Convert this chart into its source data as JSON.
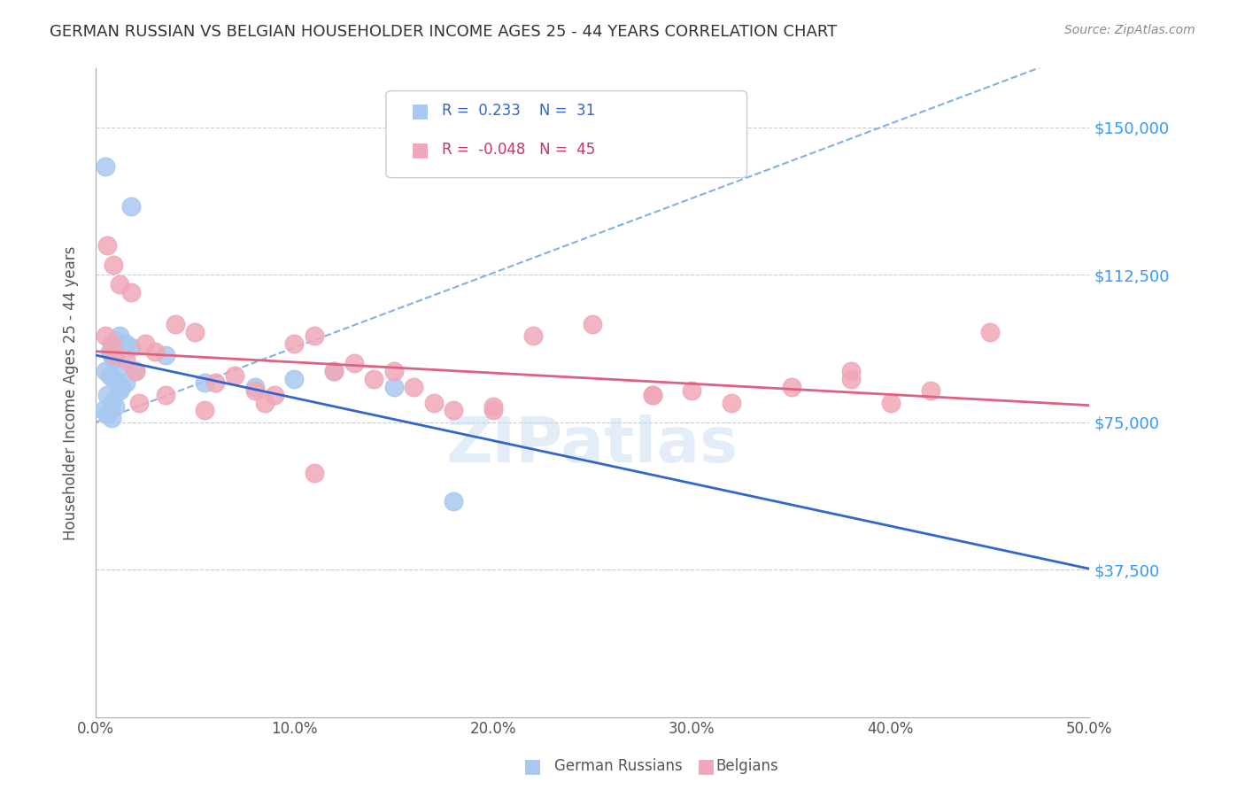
{
  "title": "GERMAN RUSSIAN VS BELGIAN HOUSEHOLDER INCOME AGES 25 - 44 YEARS CORRELATION CHART",
  "source": "Source: ZipAtlas.com",
  "ylabel": "Householder Income Ages 25 - 44 years",
  "xlabel_ticks": [
    "0.0%",
    "10.0%",
    "20.0%",
    "30.0%",
    "40.0%",
    "50.0%"
  ],
  "xlabel_vals": [
    0,
    10,
    20,
    30,
    40,
    50
  ],
  "ytick_labels": [
    "$37,500",
    "$75,000",
    "$112,500",
    "$150,000"
  ],
  "ytick_vals": [
    37500,
    75000,
    112500,
    150000
  ],
  "ylim": [
    0,
    165000
  ],
  "xlim": [
    0,
    50
  ],
  "legend_blue_r": "0.233",
  "legend_blue_n": "31",
  "legend_pink_r": "-0.048",
  "legend_pink_n": "45",
  "blue_color": "#a8c8f0",
  "blue_line_color": "#3366cc",
  "blue_dashed_color": "#80b0e8",
  "pink_color": "#f0a8b8",
  "pink_line_color": "#e06080",
  "watermark": "ZIPatlas",
  "german_russians": {
    "x": [
      0.8,
      1.0,
      1.2,
      1.5,
      1.8,
      0.5,
      0.7,
      0.9,
      1.1,
      1.3,
      0.6,
      0.8,
      1.0,
      1.2,
      0.4,
      0.6,
      0.8,
      1.5,
      2.0,
      0.9,
      1.1,
      0.7,
      3.5,
      5.5,
      8.0,
      10.0,
      12.0,
      15.0,
      18.0,
      0.5,
      1.8
    ],
    "y": [
      92000,
      96000,
      97000,
      95000,
      94000,
      88000,
      87000,
      86000,
      85000,
      84000,
      82000,
      80000,
      79000,
      83000,
      78000,
      77000,
      76000,
      85000,
      88000,
      91000,
      89000,
      93000,
      92000,
      85000,
      84000,
      86000,
      88000,
      84000,
      55000,
      140000,
      130000
    ]
  },
  "belgians": {
    "x": [
      0.5,
      0.8,
      1.0,
      1.5,
      2.0,
      2.5,
      3.0,
      4.0,
      5.0,
      6.0,
      7.0,
      8.0,
      9.0,
      10.0,
      11.0,
      12.0,
      13.0,
      14.0,
      15.0,
      16.0,
      17.0,
      18.0,
      20.0,
      22.0,
      25.0,
      28.0,
      30.0,
      32.0,
      35.0,
      38.0,
      40.0,
      42.0,
      45.0,
      0.6,
      0.9,
      1.2,
      1.8,
      2.2,
      3.5,
      5.5,
      8.5,
      11.0,
      20.0,
      28.0,
      38.0
    ],
    "y": [
      97000,
      95000,
      92000,
      91000,
      88000,
      95000,
      93000,
      100000,
      98000,
      85000,
      87000,
      83000,
      82000,
      95000,
      97000,
      88000,
      90000,
      86000,
      88000,
      84000,
      80000,
      78000,
      79000,
      97000,
      100000,
      82000,
      83000,
      80000,
      84000,
      88000,
      80000,
      83000,
      98000,
      120000,
      115000,
      110000,
      108000,
      80000,
      82000,
      78000,
      80000,
      62000,
      78000,
      82000,
      86000
    ]
  }
}
